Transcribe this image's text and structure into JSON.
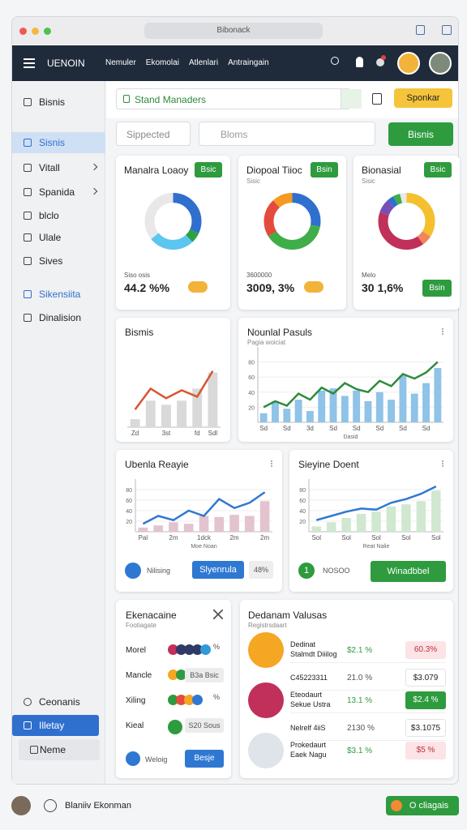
{
  "browser": {
    "url": "Bibonack"
  },
  "nav": {
    "brand": "UENOIN",
    "menu": [
      "Nemuler",
      "Ekomolai",
      "Atlenlari",
      "Antraingain"
    ]
  },
  "sidebar": {
    "items": [
      "Bisnis",
      "Sisnis",
      "Vitall",
      "Spanida",
      "blclo",
      "Ulale",
      "Sives",
      "Sikensiita",
      "Dinalision"
    ],
    "bottom": [
      "Ceonanis",
      "Illetay",
      "Neme"
    ]
  },
  "toolbar": {
    "input": "Stand Manaders",
    "button": "Sponkar"
  },
  "filters": {
    "select": "Sippected",
    "search": "Bloms",
    "button": "Bisnis"
  },
  "donuts": [
    {
      "title": "Manalra Loaoy",
      "badge": "Bsic",
      "caption": "Siso osis",
      "value": "44.2 %%",
      "segments": [
        {
          "value": 32,
          "color": "#2f6fce"
        },
        {
          "value": 6,
          "color": "#2ea043"
        },
        {
          "value": 26,
          "color": "#5bc6ef"
        }
      ]
    },
    {
      "title": "Diopoal Tiioc",
      "subtitle": "Sisic",
      "badge": "Bsin",
      "caption": "3600000",
      "value": "3009, 3%",
      "segments": [
        {
          "value": 28,
          "color": "#2f6fce"
        },
        {
          "value": 38,
          "color": "#3fae49"
        },
        {
          "value": 22,
          "color": "#e34b3c"
        },
        {
          "value": 12,
          "color": "#f59a23"
        }
      ]
    },
    {
      "title": "Bionasial",
      "subtitle": "Sisic",
      "badge": "Bsic",
      "caption": "Melo",
      "value": "30 1,6%",
      "button": "Bsin",
      "segments": [
        {
          "value": 34,
          "color": "#f5c02e"
        },
        {
          "value": 6,
          "color": "#f0865a"
        },
        {
          "value": 40,
          "color": "#c0305a"
        },
        {
          "value": 8,
          "color": "#7a4fb5"
        },
        {
          "value": 4,
          "color": "#2f6fce"
        },
        {
          "value": 4,
          "color": "#3fae49"
        }
      ]
    }
  ],
  "charts": [
    {
      "title": "Bismis",
      "categories": [
        "Zd",
        null,
        "3st",
        null,
        "fd",
        "Sdl"
      ],
      "ylim": [
        0,
        100
      ],
      "bars": {
        "color": "#d9d9d9",
        "values": [
          10,
          33,
          28,
          33,
          48,
          68
        ]
      },
      "line": {
        "color": "#d9542f",
        "values": [
          22,
          48,
          36,
          46,
          38,
          70
        ]
      }
    },
    {
      "title": "Nounlal Pasuls",
      "subtitle": "Pagia woiciat",
      "categories": [
        "Sd",
        null,
        "Sd",
        null,
        "3d",
        null,
        "Sd",
        null,
        "Sd",
        null,
        "Sd",
        null,
        "Sd",
        null,
        "Sd",
        null
      ],
      "ylim": [
        0,
        100
      ],
      "yticks": [
        20,
        40,
        60,
        80
      ],
      "xlabel": "Dasid",
      "bars": {
        "color": "#8fc3e8",
        "values": [
          12,
          28,
          18,
          30,
          15,
          42,
          45,
          35,
          42,
          28,
          40,
          30,
          62,
          38,
          52,
          72
        ]
      },
      "line": {
        "color": "#2e8b3c",
        "values": [
          20,
          28,
          22,
          38,
          30,
          46,
          38,
          52,
          44,
          40,
          55,
          48,
          64,
          58,
          66,
          80
        ]
      }
    },
    {
      "title": "Ubenla Reayie",
      "categories": [
        "Pal",
        null,
        "2m",
        null,
        "1dck",
        null,
        "2m",
        null,
        "2m"
      ],
      "ylim": [
        0,
        100
      ],
      "yticks": [
        20,
        40,
        60,
        80
      ],
      "xlabel": "Moe Noan",
      "bars": {
        "color": "#e3c3cf",
        "values": [
          8,
          12,
          18,
          15,
          30,
          28,
          32,
          30,
          58
        ]
      },
      "line": {
        "color": "#2f78d2",
        "values": [
          15,
          30,
          22,
          40,
          30,
          62,
          45,
          55,
          75
        ]
      },
      "status": "Nilising",
      "button": "Slyenrula",
      "tag": "48%"
    },
    {
      "title": "Sieyine Doent",
      "categories": [
        "Sol",
        null,
        "Sol",
        null,
        "Sol",
        null,
        "Sol",
        null,
        "Sol"
      ],
      "ylim": [
        0,
        100
      ],
      "yticks": [
        20,
        40,
        60,
        80
      ],
      "xlabel": "Reat Nalie",
      "bars": {
        "color": "#cfe8cf",
        "values": [
          10,
          18,
          26,
          34,
          38,
          48,
          52,
          58,
          78
        ]
      },
      "line": {
        "color": "#2f78d2",
        "values": [
          22,
          30,
          38,
          44,
          42,
          55,
          62,
          72,
          86
        ]
      },
      "count": "1",
      "status": "NOSOO",
      "button": "Winadbbel"
    }
  ],
  "list": {
    "title": "Ekenacaine",
    "subtitle": "Footiagate",
    "rows": [
      {
        "label": "Morel",
        "tag": "%"
      },
      {
        "label": "Mancle",
        "tag": "B3a Bsic"
      },
      {
        "label": "Xiling",
        "tag": "%"
      },
      {
        "label": "Kieal",
        "tag": "S20 Sous"
      }
    ],
    "status": "Weloig",
    "button": "Besje"
  },
  "values": {
    "title": "Dedanam Valusas",
    "subtitle": "Registrsdaart",
    "rows": [
      {
        "name": "Dedinat",
        "sub": "Stalmdt Diiilog",
        "change": "$2.1 %",
        "amount": "60.3%"
      },
      {
        "name": "C45223311",
        "change": "21.0 %",
        "amount": "$3.079"
      },
      {
        "name": "Eteodaurt",
        "sub": "Sekue Ustra",
        "change": "13.1 %",
        "amount": "$2.4 %"
      },
      {
        "name": "Nelrelf 4iiS",
        "change": "2130 %",
        "amount": "$3.1075"
      },
      {
        "name": "Prokedaurt",
        "sub": "Eaek Nagu",
        "change": "$3.1 %",
        "amount": "$5 %"
      }
    ]
  },
  "footer": {
    "user": "Blaniiv Ekonman",
    "button": "O cliagais"
  }
}
